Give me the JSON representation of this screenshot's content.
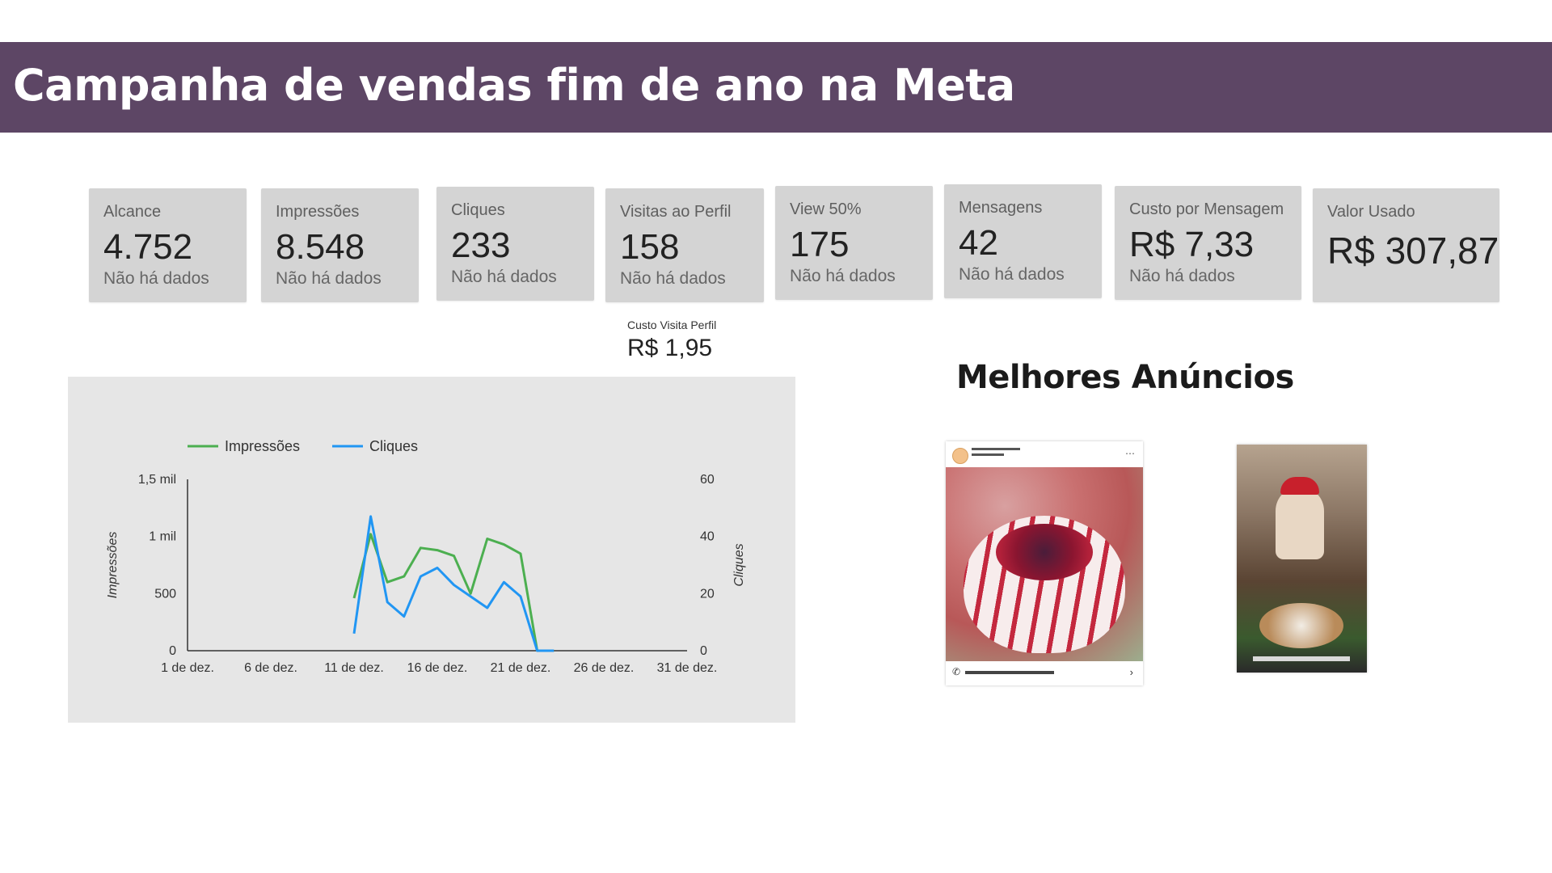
{
  "header": {
    "title": "Campanha de vendas fim de ano na Meta"
  },
  "kpis": [
    {
      "label": "Alcance",
      "value": "4.752",
      "sub": "Não há dados"
    },
    {
      "label": "Impressões",
      "value": "8.548",
      "sub": "Não há dados"
    },
    {
      "label": "Cliques",
      "value": "233",
      "sub": "Não há dados"
    },
    {
      "label": "Visitas ao Perfil",
      "value": "158",
      "sub": "Não há dados"
    },
    {
      "label": "View 50%",
      "value": "175",
      "sub": "Não há dados"
    },
    {
      "label": "Mensagens",
      "value": "42",
      "sub": "Não há dados"
    },
    {
      "label": "Custo por Mensagem",
      "value": "R$ 7,33",
      "sub": "Não há dados"
    },
    {
      "label": "Valor Usado",
      "value": "R$ 307,87"
    }
  ],
  "cost_visit": {
    "label": "Custo Visita Perfil",
    "value": "R$ 1,95"
  },
  "ads": {
    "title": "Melhores Anúncios"
  },
  "colors": {
    "header_bg": "#5d4665",
    "kpi_bg": "#d4d4d4",
    "chart_bg": "#e6e6e6",
    "impressoes": "#4caf50",
    "cliques": "#2196f3"
  },
  "chart_data": {
    "type": "line",
    "x_tick_labels": [
      "1 de dez.",
      "6 de dez.",
      "11 de dez.",
      "16 de dez.",
      "21 de dez.",
      "26 de dez.",
      "31 de dez."
    ],
    "x_range_days": [
      1,
      31
    ],
    "ylabel_left": "Impressões",
    "ylabel_right": "Cliques",
    "y_left_ticks": [
      "0",
      "500",
      "1 mil",
      "1,5 mil"
    ],
    "y_left_range": [
      0,
      1500
    ],
    "y_right_ticks": [
      "0",
      "20",
      "40",
      "60"
    ],
    "y_right_range": [
      0,
      60
    ],
    "legend_position": "top-left",
    "series": [
      {
        "name": "Impressões",
        "axis": "left",
        "color": "#4caf50",
        "x": [
          11,
          12,
          13,
          14,
          15,
          16,
          17,
          18,
          19,
          20,
          21,
          22,
          23
        ],
        "y": [
          460,
          1020,
          600,
          650,
          900,
          880,
          830,
          500,
          980,
          930,
          850,
          0,
          0
        ]
      },
      {
        "name": "Cliques",
        "axis": "right",
        "color": "#2196f3",
        "x": [
          11,
          12,
          13,
          14,
          15,
          16,
          17,
          18,
          19,
          20,
          21,
          22,
          23
        ],
        "y": [
          6,
          47,
          17,
          12,
          26,
          29,
          23,
          19,
          15,
          24,
          19,
          0,
          0
        ]
      }
    ],
    "grid": false
  }
}
